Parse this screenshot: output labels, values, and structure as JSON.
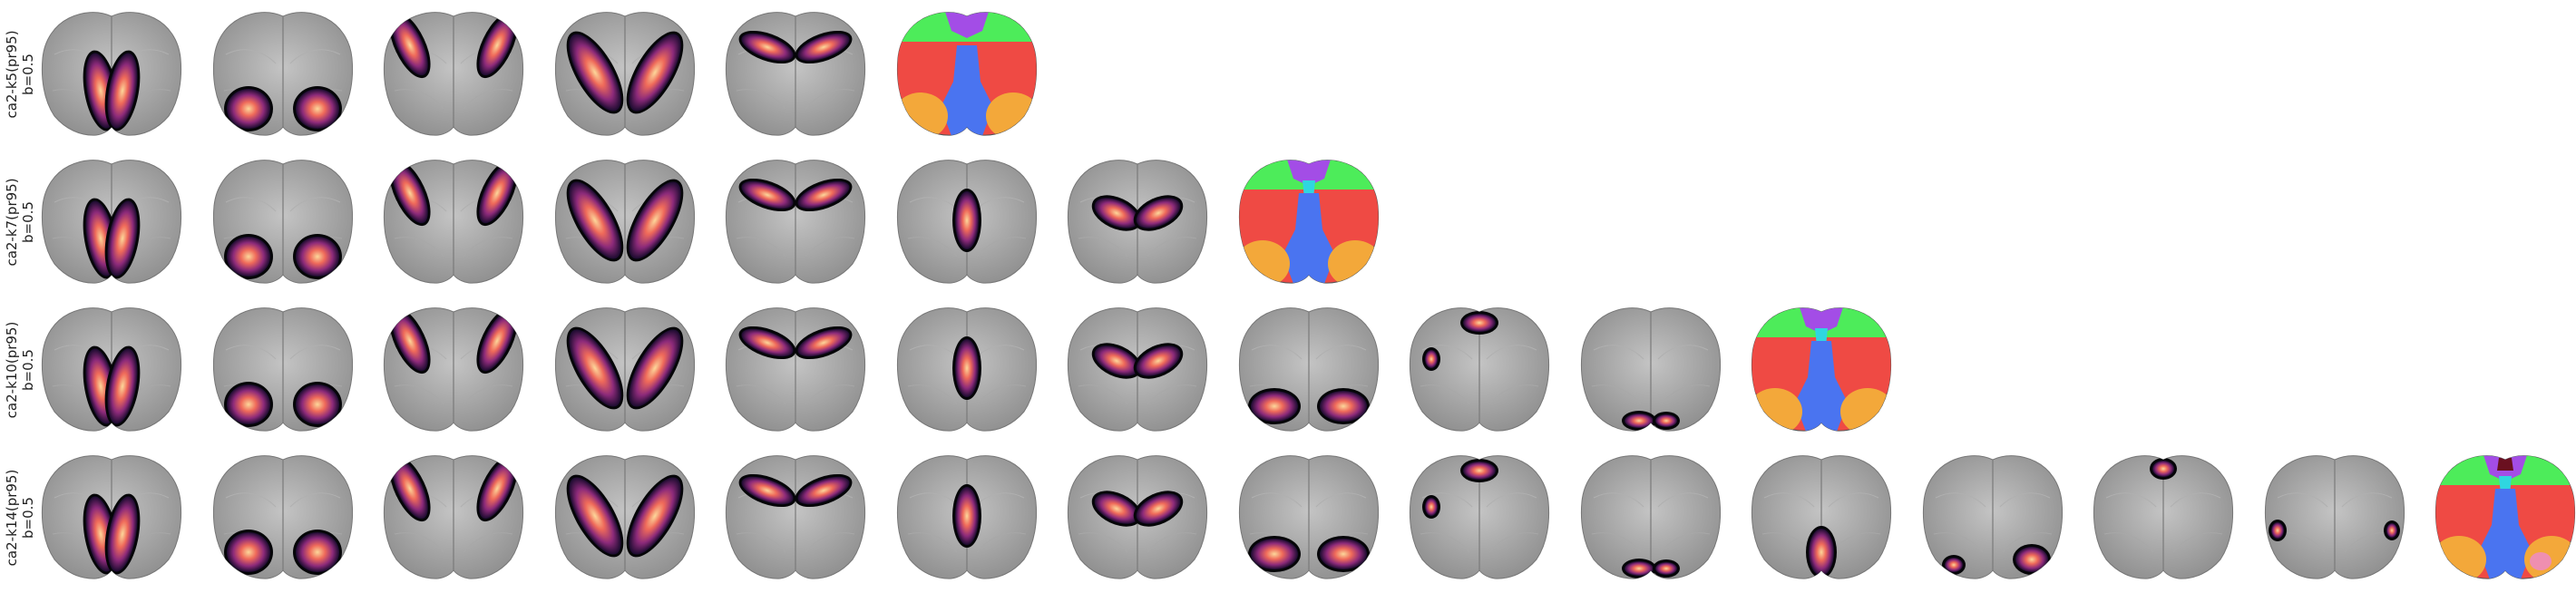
{
  "figure": {
    "colors": {
      "cortex_light": "#c4c4c4",
      "cortex_dark": "#8f8f8f",
      "outline": "#050508",
      "magma_dark": "#1a0b2e",
      "magma_mid": "#8c2a7a",
      "magma_hot": "#ef6a5a",
      "magma_light": "#fcd79a",
      "atlas_green": "#4dec5a",
      "atlas_purple": "#a34de6",
      "atlas_red": "#ef4a44",
      "atlas_blue": "#4a74f0",
      "atlas_orange": "#f3a83a",
      "atlas_cyan": "#2fd6e0",
      "atlas_pink": "#ef8fb0"
    },
    "rows": [
      {
        "label_line1": "ca2-k5(pr95)",
        "label_line2": "b=0.5",
        "maps": [
          "posterior-medial",
          "posterior-lateral",
          "anterior-lateral",
          "lateral-band",
          "frontal-ring"
        ],
        "atlas": [
          "green",
          "purple",
          "red",
          "blue",
          "orange"
        ]
      },
      {
        "label_line1": "ca2-k7(pr95)",
        "label_line2": "b=0.5",
        "maps": [
          "posterior-medial",
          "posterior-lateral",
          "anterior-lateral",
          "lateral-band",
          "frontal-ring",
          "midline-sparse",
          "midline-wide"
        ],
        "atlas": [
          "green",
          "purple",
          "cyan",
          "red",
          "blue",
          "orange"
        ]
      },
      {
        "label_line1": "ca2-k10(pr95)",
        "label_line2": "b=0.5",
        "maps": [
          "posterior-medial",
          "posterior-lateral",
          "anterior-lateral",
          "lateral-band",
          "frontal-ring",
          "midline-sparse",
          "midline-wide",
          "posterior-blobs",
          "frontal-small",
          "posterior-small"
        ],
        "atlas": [
          "green",
          "purple",
          "cyan",
          "red",
          "blue",
          "orange"
        ]
      },
      {
        "label_line1": "ca2-k14(pr95)",
        "label_line2": "b=0.5",
        "maps": [
          "posterior-medial",
          "posterior-lateral",
          "anterior-lateral",
          "lateral-band",
          "frontal-ring",
          "midline-sparse",
          "midline-wide",
          "posterior-blobs",
          "frontal-small",
          "posterior-small",
          "posterior-center",
          "posterior-right",
          "frontal-tiny",
          "lateral-dots"
        ],
        "atlas": [
          "green",
          "purple",
          "cyan",
          "red",
          "blue",
          "orange",
          "pink"
        ]
      }
    ]
  }
}
